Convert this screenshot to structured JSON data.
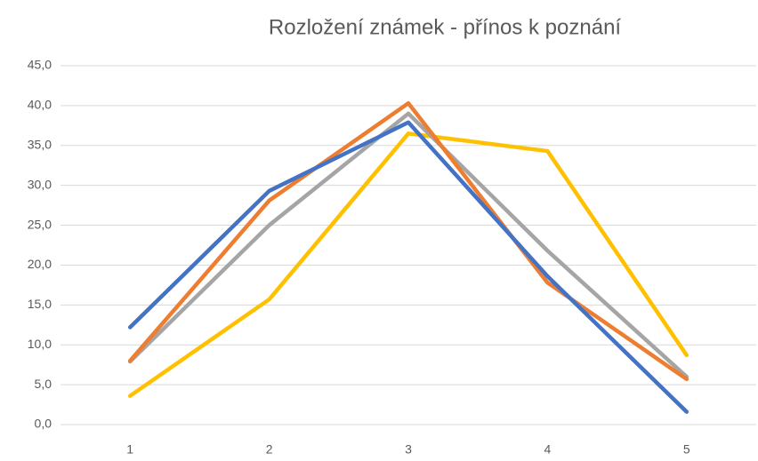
{
  "chart_data": {
    "type": "line",
    "title": "Rozložení známek - přínos k poznání",
    "categories": [
      "1",
      "2",
      "3",
      "4",
      "5"
    ],
    "series": [
      {
        "color": "#4472c4",
        "values": [
          12.2,
          29.3,
          37.9,
          18.6,
          1.6
        ]
      },
      {
        "color": "#ed7d31",
        "values": [
          8.0,
          28.1,
          40.3,
          17.8,
          5.7
        ]
      },
      {
        "color": "#a5a5a5",
        "values": [
          7.9,
          25.0,
          39.0,
          21.8,
          6.0
        ]
      },
      {
        "color": "#ffc000",
        "values": [
          3.6,
          15.7,
          36.5,
          34.3,
          8.7
        ]
      }
    ],
    "ylim": [
      0,
      45
    ],
    "yticks": [
      {
        "value": 0,
        "label": "0,0"
      },
      {
        "value": 5,
        "label": "5,0"
      },
      {
        "value": 10,
        "label": "10,0"
      },
      {
        "value": 15,
        "label": "15,0"
      },
      {
        "value": 20,
        "label": "20,0"
      },
      {
        "value": 25,
        "label": "25,0"
      },
      {
        "value": 30,
        "label": "30,0"
      },
      {
        "value": 35,
        "label": "35,0"
      },
      {
        "value": 40,
        "label": "40,0"
      },
      {
        "value": 45,
        "label": "45,0"
      }
    ],
    "grid": true
  }
}
